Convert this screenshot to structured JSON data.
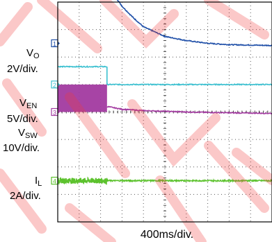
{
  "chart_data": {
    "type": "line",
    "title": "",
    "xlabel": "400ms/div.",
    "x_divisions": 10,
    "y_divisions": 8,
    "grid": true,
    "channels": [
      {
        "id": "1",
        "marker": "1",
        "name": "VO",
        "name_main": "V",
        "name_sub": "O",
        "scale": "2V/div.",
        "color": "#1f4fa8",
        "marker_div": 6.5,
        "points": [
          [
            0,
            8.75
          ],
          [
            2.3,
            8.75
          ],
          [
            2.6,
            8.3
          ],
          [
            3.0,
            7.85
          ],
          [
            3.5,
            7.45
          ],
          [
            4.0,
            7.1
          ],
          [
            5.0,
            6.75
          ],
          [
            6.0,
            6.6
          ],
          [
            7.0,
            6.5
          ],
          [
            8.0,
            6.45
          ],
          [
            10,
            6.42
          ]
        ]
      },
      {
        "id": "2",
        "marker": "2",
        "name": "VEN",
        "name_main": "V",
        "name_sub": "EN",
        "scale": "5V/div.",
        "color": "#3bc0d0",
        "marker_div": 5.0,
        "points": [
          [
            0,
            5.65
          ],
          [
            2.3,
            5.65
          ],
          [
            2.3,
            5.0
          ],
          [
            10,
            5.0
          ]
        ]
      },
      {
        "id": "3",
        "marker": "3",
        "name": "VSW",
        "name_main": "V",
        "name_sub": "SW",
        "scale": "10V/div.",
        "color": "#a23aa0",
        "marker_div": 4.0,
        "switching_band": [
          0,
          2.3,
          4.0,
          5.0
        ],
        "points": [
          [
            2.3,
            4.2
          ],
          [
            3.0,
            4.1
          ],
          [
            4.0,
            4.05
          ],
          [
            6.0,
            4.0
          ],
          [
            8.0,
            3.97
          ],
          [
            10,
            3.95
          ]
        ]
      },
      {
        "id": "4",
        "marker": "4",
        "name": "IL",
        "name_main": "I",
        "name_sub": "L",
        "scale": "2A/div.",
        "color": "#5cc22d",
        "marker_div": 1.5,
        "noisy_until": 2.3,
        "points": [
          [
            0,
            1.5
          ],
          [
            10,
            1.5
          ]
        ]
      }
    ]
  },
  "watermark": {
    "color": "#ef3a3a"
  }
}
